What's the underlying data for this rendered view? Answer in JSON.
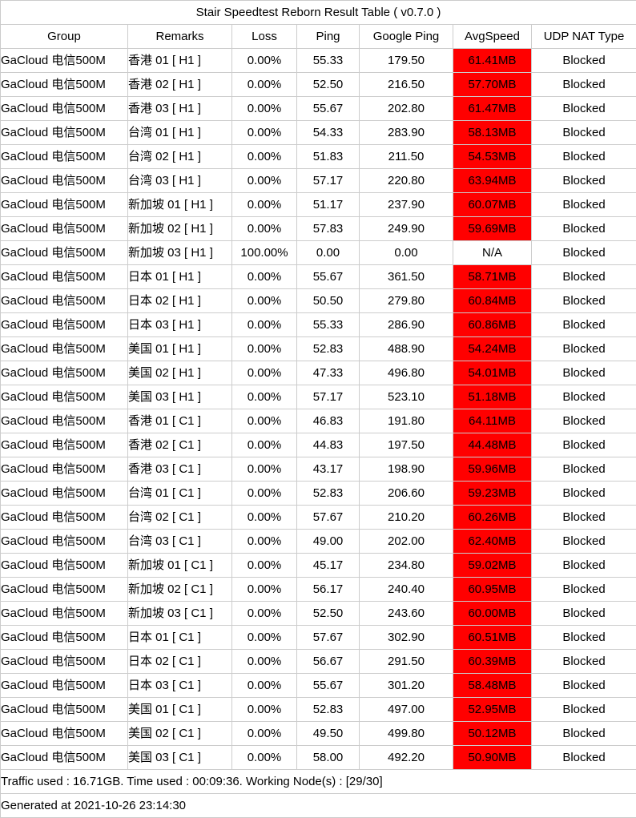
{
  "title": "Stair Speedtest Reborn Result Table ( v0.7.0 )",
  "colors": {
    "speed_highlight": "#ff0000",
    "border": "#cccccc",
    "text": "#000000",
    "background": "#ffffff"
  },
  "table": {
    "columns": [
      {
        "key": "group",
        "label": "Group"
      },
      {
        "key": "remarks",
        "label": "Remarks"
      },
      {
        "key": "loss",
        "label": "Loss"
      },
      {
        "key": "ping",
        "label": "Ping"
      },
      {
        "key": "google_ping",
        "label": "Google Ping"
      },
      {
        "key": "avg_speed",
        "label": "AvgSpeed"
      },
      {
        "key": "udp_nat_type",
        "label": "UDP NAT Type"
      }
    ],
    "rows": [
      {
        "group": "GaCloud 电信500M",
        "remarks": "香港 01 [ H1 ]",
        "loss": "0.00%",
        "ping": "55.33",
        "google_ping": "179.50",
        "avg_speed": "61.41MB",
        "speed_highlight": true,
        "udp_nat_type": "Blocked"
      },
      {
        "group": "GaCloud 电信500M",
        "remarks": "香港 02 [ H1 ]",
        "loss": "0.00%",
        "ping": "52.50",
        "google_ping": "216.50",
        "avg_speed": "57.70MB",
        "speed_highlight": true,
        "udp_nat_type": "Blocked"
      },
      {
        "group": "GaCloud 电信500M",
        "remarks": "香港 03 [ H1 ]",
        "loss": "0.00%",
        "ping": "55.67",
        "google_ping": "202.80",
        "avg_speed": "61.47MB",
        "speed_highlight": true,
        "udp_nat_type": "Blocked"
      },
      {
        "group": "GaCloud 电信500M",
        "remarks": "台湾 01 [ H1 ]",
        "loss": "0.00%",
        "ping": "54.33",
        "google_ping": "283.90",
        "avg_speed": "58.13MB",
        "speed_highlight": true,
        "udp_nat_type": "Blocked"
      },
      {
        "group": "GaCloud 电信500M",
        "remarks": "台湾 02 [ H1 ]",
        "loss": "0.00%",
        "ping": "51.83",
        "google_ping": "211.50",
        "avg_speed": "54.53MB",
        "speed_highlight": true,
        "udp_nat_type": "Blocked"
      },
      {
        "group": "GaCloud 电信500M",
        "remarks": "台湾 03 [ H1 ]",
        "loss": "0.00%",
        "ping": "57.17",
        "google_ping": "220.80",
        "avg_speed": "63.94MB",
        "speed_highlight": true,
        "udp_nat_type": "Blocked"
      },
      {
        "group": "GaCloud 电信500M",
        "remarks": "新加坡 01 [ H1 ]",
        "loss": "0.00%",
        "ping": "51.17",
        "google_ping": "237.90",
        "avg_speed": "60.07MB",
        "speed_highlight": true,
        "udp_nat_type": "Blocked"
      },
      {
        "group": "GaCloud 电信500M",
        "remarks": "新加坡 02 [ H1 ]",
        "loss": "0.00%",
        "ping": "57.83",
        "google_ping": "249.90",
        "avg_speed": "59.69MB",
        "speed_highlight": true,
        "udp_nat_type": "Blocked"
      },
      {
        "group": "GaCloud 电信500M",
        "remarks": "新加坡 03 [ H1 ]",
        "loss": "100.00%",
        "ping": "0.00",
        "google_ping": "0.00",
        "avg_speed": "N/A",
        "speed_highlight": false,
        "udp_nat_type": "Blocked"
      },
      {
        "group": "GaCloud 电信500M",
        "remarks": "日本 01 [ H1 ]",
        "loss": "0.00%",
        "ping": "55.67",
        "google_ping": "361.50",
        "avg_speed": "58.71MB",
        "speed_highlight": true,
        "udp_nat_type": "Blocked"
      },
      {
        "group": "GaCloud 电信500M",
        "remarks": "日本 02 [ H1 ]",
        "loss": "0.00%",
        "ping": "50.50",
        "google_ping": "279.80",
        "avg_speed": "60.84MB",
        "speed_highlight": true,
        "udp_nat_type": "Blocked"
      },
      {
        "group": "GaCloud 电信500M",
        "remarks": "日本 03 [ H1 ]",
        "loss": "0.00%",
        "ping": "55.33",
        "google_ping": "286.90",
        "avg_speed": "60.86MB",
        "speed_highlight": true,
        "udp_nat_type": "Blocked"
      },
      {
        "group": "GaCloud 电信500M",
        "remarks": "美国 01 [ H1 ]",
        "loss": "0.00%",
        "ping": "52.83",
        "google_ping": "488.90",
        "avg_speed": "54.24MB",
        "speed_highlight": true,
        "udp_nat_type": "Blocked"
      },
      {
        "group": "GaCloud 电信500M",
        "remarks": "美国 02 [ H1 ]",
        "loss": "0.00%",
        "ping": "47.33",
        "google_ping": "496.80",
        "avg_speed": "54.01MB",
        "speed_highlight": true,
        "udp_nat_type": "Blocked"
      },
      {
        "group": "GaCloud 电信500M",
        "remarks": "美国 03 [ H1 ]",
        "loss": "0.00%",
        "ping": "57.17",
        "google_ping": "523.10",
        "avg_speed": "51.18MB",
        "speed_highlight": true,
        "udp_nat_type": "Blocked"
      },
      {
        "group": "GaCloud 电信500M",
        "remarks": "香港 01 [ C1 ]",
        "loss": "0.00%",
        "ping": "46.83",
        "google_ping": "191.80",
        "avg_speed": "64.11MB",
        "speed_highlight": true,
        "udp_nat_type": "Blocked"
      },
      {
        "group": "GaCloud 电信500M",
        "remarks": "香港 02 [ C1 ]",
        "loss": "0.00%",
        "ping": "44.83",
        "google_ping": "197.50",
        "avg_speed": "44.48MB",
        "speed_highlight": true,
        "udp_nat_type": "Blocked"
      },
      {
        "group": "GaCloud 电信500M",
        "remarks": "香港 03 [ C1 ]",
        "loss": "0.00%",
        "ping": "43.17",
        "google_ping": "198.90",
        "avg_speed": "59.96MB",
        "speed_highlight": true,
        "udp_nat_type": "Blocked"
      },
      {
        "group": "GaCloud 电信500M",
        "remarks": "台湾 01 [ C1 ]",
        "loss": "0.00%",
        "ping": "52.83",
        "google_ping": "206.60",
        "avg_speed": "59.23MB",
        "speed_highlight": true,
        "udp_nat_type": "Blocked"
      },
      {
        "group": "GaCloud 电信500M",
        "remarks": "台湾 02 [ C1 ]",
        "loss": "0.00%",
        "ping": "57.67",
        "google_ping": "210.20",
        "avg_speed": "60.26MB",
        "speed_highlight": true,
        "udp_nat_type": "Blocked"
      },
      {
        "group": "GaCloud 电信500M",
        "remarks": "台湾 03 [ C1 ]",
        "loss": "0.00%",
        "ping": "49.00",
        "google_ping": "202.00",
        "avg_speed": "62.40MB",
        "speed_highlight": true,
        "udp_nat_type": "Blocked"
      },
      {
        "group": "GaCloud 电信500M",
        "remarks": "新加坡 01 [ C1 ]",
        "loss": "0.00%",
        "ping": "45.17",
        "google_ping": "234.80",
        "avg_speed": "59.02MB",
        "speed_highlight": true,
        "udp_nat_type": "Blocked"
      },
      {
        "group": "GaCloud 电信500M",
        "remarks": "新加坡 02 [ C1 ]",
        "loss": "0.00%",
        "ping": "56.17",
        "google_ping": "240.40",
        "avg_speed": "60.95MB",
        "speed_highlight": true,
        "udp_nat_type": "Blocked"
      },
      {
        "group": "GaCloud 电信500M",
        "remarks": "新加坡 03 [ C1 ]",
        "loss": "0.00%",
        "ping": "52.50",
        "google_ping": "243.60",
        "avg_speed": "60.00MB",
        "speed_highlight": true,
        "udp_nat_type": "Blocked"
      },
      {
        "group": "GaCloud 电信500M",
        "remarks": "日本 01 [ C1 ]",
        "loss": "0.00%",
        "ping": "57.67",
        "google_ping": "302.90",
        "avg_speed": "60.51MB",
        "speed_highlight": true,
        "udp_nat_type": "Blocked"
      },
      {
        "group": "GaCloud 电信500M",
        "remarks": "日本 02 [ C1 ]",
        "loss": "0.00%",
        "ping": "56.67",
        "google_ping": "291.50",
        "avg_speed": "60.39MB",
        "speed_highlight": true,
        "udp_nat_type": "Blocked"
      },
      {
        "group": "GaCloud 电信500M",
        "remarks": "日本 03 [ C1 ]",
        "loss": "0.00%",
        "ping": "55.67",
        "google_ping": "301.20",
        "avg_speed": "58.48MB",
        "speed_highlight": true,
        "udp_nat_type": "Blocked"
      },
      {
        "group": "GaCloud 电信500M",
        "remarks": "美国 01 [ C1 ]",
        "loss": "0.00%",
        "ping": "52.83",
        "google_ping": "497.00",
        "avg_speed": "52.95MB",
        "speed_highlight": true,
        "udp_nat_type": "Blocked"
      },
      {
        "group": "GaCloud 电信500M",
        "remarks": "美国 02 [ C1 ]",
        "loss": "0.00%",
        "ping": "49.50",
        "google_ping": "499.80",
        "avg_speed": "50.12MB",
        "speed_highlight": true,
        "udp_nat_type": "Blocked"
      },
      {
        "group": "GaCloud 电信500M",
        "remarks": "美国 03 [ C1 ]",
        "loss": "0.00%",
        "ping": "58.00",
        "google_ping": "492.20",
        "avg_speed": "50.90MB",
        "speed_highlight": true,
        "udp_nat_type": "Blocked"
      }
    ]
  },
  "footer": {
    "traffic_line": "Traffic used : 16.71GB. Time used : 00:09:36. Working Node(s) : [29/30]",
    "generated_line": "Generated at 2021-10-26 23:14:30"
  }
}
